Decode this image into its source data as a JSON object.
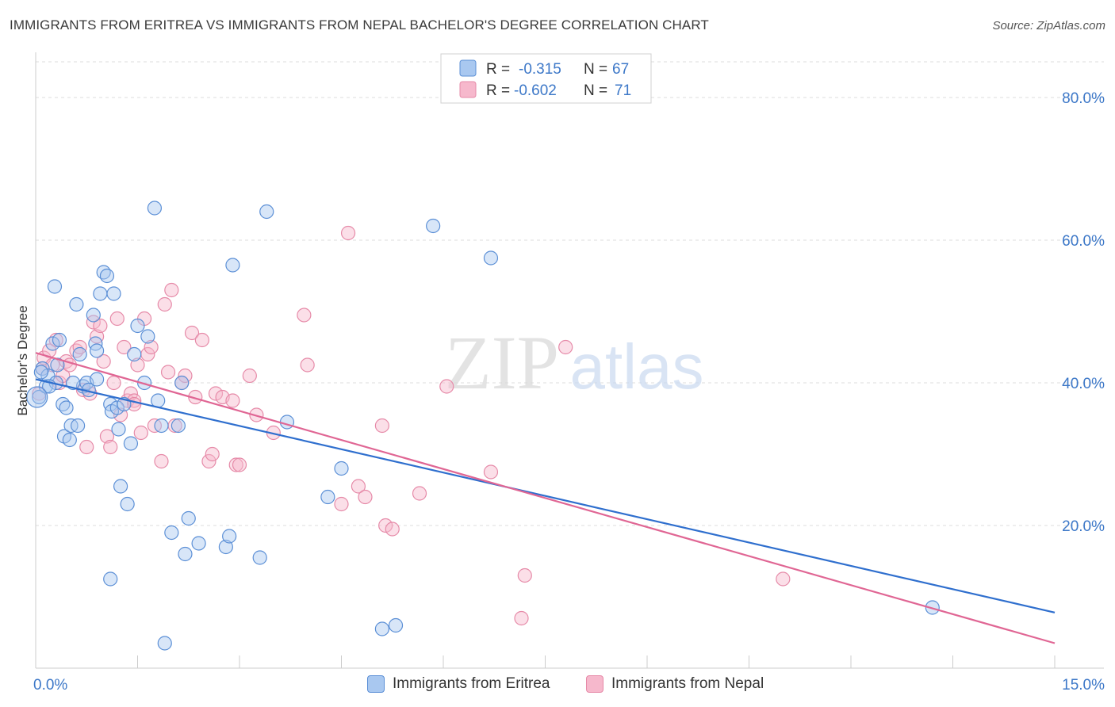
{
  "header": {
    "title": "IMMIGRANTS FROM ERITREA VS IMMIGRANTS FROM NEPAL BACHELOR'S DEGREE CORRELATION CHART",
    "source": "Source: ZipAtlas.com"
  },
  "watermark": {
    "zip": "ZIP",
    "atlas": "atlas"
  },
  "colors": {
    "eritrea_fill": "#a9c8f0",
    "eritrea_stroke": "#5b8fd6",
    "eritrea_line": "#2f6fce",
    "nepal_fill": "#f6b8cc",
    "nepal_stroke": "#e68aa8",
    "nepal_line": "#e06694",
    "axis_label": "#3d78c8",
    "grid": "#dddddd"
  },
  "legend": {
    "rows": [
      {
        "r_label": "R =",
        "r_value": "-0.315",
        "n_label": "N =",
        "n_value": "67"
      },
      {
        "r_label": "R =",
        "r_value": "-0.602",
        "n_label": "N =",
        "n_value": "71"
      }
    ]
  },
  "chart_data": {
    "type": "scatter",
    "title": "IMMIGRANTS FROM ERITREA VS IMMIGRANTS FROM NEPAL BACHELOR'S DEGREE CORRELATION CHART",
    "xlabel": "",
    "ylabel": "Bachelor's Degree",
    "xlim": [
      0,
      15
    ],
    "ylim": [
      0,
      85
    ],
    "x_tick_labels": [
      "0.0%",
      "15.0%"
    ],
    "y_ticks": [
      20,
      40,
      60,
      80
    ],
    "y_tick_labels": [
      "20.0%",
      "40.0%",
      "60.0%",
      "80.0%"
    ],
    "grid": true,
    "legend_position": "top-center",
    "series": [
      {
        "name": "Immigrants from Eritrea",
        "trend": {
          "x": [
            0,
            15
          ],
          "y": [
            40.5,
            7.8
          ]
        },
        "points": [
          [
            0.05,
            38.0
          ],
          [
            0.1,
            42.0
          ],
          [
            0.15,
            39.5
          ],
          [
            0.18,
            41.0
          ],
          [
            0.25,
            45.5
          ],
          [
            0.28,
            53.5
          ],
          [
            0.3,
            40.0
          ],
          [
            0.32,
            42.5
          ],
          [
            0.35,
            46.0
          ],
          [
            0.4,
            37.0
          ],
          [
            0.42,
            32.5
          ],
          [
            0.5,
            32.0
          ],
          [
            0.52,
            34.0
          ],
          [
            0.6,
            51.0
          ],
          [
            0.62,
            34.0
          ],
          [
            0.7,
            39.5
          ],
          [
            0.75,
            40.0
          ],
          [
            0.78,
            39.0
          ],
          [
            0.85,
            49.5
          ],
          [
            0.88,
            45.5
          ],
          [
            0.9,
            44.5
          ],
          [
            0.95,
            52.5
          ],
          [
            1.0,
            55.5
          ],
          [
            1.05,
            55.0
          ],
          [
            1.1,
            37.0
          ],
          [
            1.12,
            36.0
          ],
          [
            1.15,
            52.5
          ],
          [
            1.2,
            36.5
          ],
          [
            1.22,
            33.5
          ],
          [
            1.25,
            25.5
          ],
          [
            1.3,
            37.0
          ],
          [
            1.35,
            23.0
          ],
          [
            1.4,
            31.5
          ],
          [
            1.45,
            44.0
          ],
          [
            1.5,
            48.0
          ],
          [
            1.65,
            46.5
          ],
          [
            1.75,
            64.5
          ],
          [
            1.8,
            37.5
          ],
          [
            1.85,
            34.0
          ],
          [
            1.9,
            3.5
          ],
          [
            2.0,
            19.0
          ],
          [
            2.1,
            34.0
          ],
          [
            2.15,
            40.0
          ],
          [
            2.2,
            16.0
          ],
          [
            2.25,
            21.0
          ],
          [
            2.4,
            17.5
          ],
          [
            2.8,
            17.0
          ],
          [
            2.85,
            18.5
          ],
          [
            2.9,
            56.5
          ],
          [
            3.3,
            15.5
          ],
          [
            3.4,
            64.0
          ],
          [
            3.7,
            34.5
          ],
          [
            4.3,
            24.0
          ],
          [
            4.5,
            28.0
          ],
          [
            5.1,
            5.5
          ],
          [
            5.3,
            6.0
          ],
          [
            5.85,
            62.0
          ],
          [
            6.7,
            57.5
          ],
          [
            13.2,
            8.5
          ],
          [
            1.1,
            12.5
          ],
          [
            0.9,
            40.5
          ],
          [
            0.55,
            40.0
          ],
          [
            0.65,
            44.0
          ],
          [
            0.2,
            39.5
          ],
          [
            0.08,
            41.5
          ],
          [
            1.6,
            40.0
          ],
          [
            0.45,
            36.5
          ]
        ]
      },
      {
        "name": "Immigrants from Nepal",
        "trend": {
          "x": [
            0,
            15
          ],
          "y": [
            44.2,
            3.5
          ]
        },
        "points": [
          [
            0.05,
            38.5
          ],
          [
            0.1,
            42.0
          ],
          [
            0.12,
            43.5
          ],
          [
            0.2,
            44.5
          ],
          [
            0.25,
            42.5
          ],
          [
            0.3,
            46.0
          ],
          [
            0.35,
            40.0
          ],
          [
            0.4,
            41.0
          ],
          [
            0.45,
            43.0
          ],
          [
            0.5,
            42.5
          ],
          [
            0.6,
            44.5
          ],
          [
            0.65,
            45.0
          ],
          [
            0.7,
            39.0
          ],
          [
            0.8,
            38.5
          ],
          [
            0.85,
            48.5
          ],
          [
            0.9,
            46.5
          ],
          [
            0.95,
            48.0
          ],
          [
            1.0,
            43.0
          ],
          [
            1.05,
            32.5
          ],
          [
            1.1,
            31.0
          ],
          [
            1.15,
            40.0
          ],
          [
            1.2,
            49.0
          ],
          [
            1.25,
            35.5
          ],
          [
            1.3,
            45.0
          ],
          [
            1.35,
            37.5
          ],
          [
            1.4,
            38.5
          ],
          [
            1.45,
            37.5
          ],
          [
            1.5,
            42.5
          ],
          [
            1.55,
            33.0
          ],
          [
            1.6,
            49.0
          ],
          [
            1.65,
            44.0
          ],
          [
            1.7,
            45.0
          ],
          [
            1.75,
            34.0
          ],
          [
            1.85,
            29.0
          ],
          [
            1.9,
            51.0
          ],
          [
            1.95,
            41.5
          ],
          [
            2.0,
            53.0
          ],
          [
            2.05,
            34.0
          ],
          [
            2.15,
            40.0
          ],
          [
            2.2,
            41.0
          ],
          [
            2.3,
            47.0
          ],
          [
            2.35,
            38.0
          ],
          [
            2.45,
            46.0
          ],
          [
            2.55,
            29.0
          ],
          [
            2.6,
            30.0
          ],
          [
            2.65,
            38.5
          ],
          [
            2.75,
            38.0
          ],
          [
            2.9,
            37.5
          ],
          [
            2.95,
            28.5
          ],
          [
            3.0,
            28.5
          ],
          [
            3.15,
            41.0
          ],
          [
            3.25,
            35.5
          ],
          [
            3.5,
            33.0
          ],
          [
            3.95,
            49.5
          ],
          [
            4.0,
            42.5
          ],
          [
            4.5,
            23.0
          ],
          [
            4.6,
            61.0
          ],
          [
            4.75,
            25.5
          ],
          [
            4.85,
            24.0
          ],
          [
            5.1,
            34.0
          ],
          [
            5.15,
            20.0
          ],
          [
            5.25,
            19.5
          ],
          [
            5.65,
            24.5
          ],
          [
            6.05,
            39.5
          ],
          [
            6.7,
            27.5
          ],
          [
            7.2,
            13.0
          ],
          [
            7.15,
            7.0
          ],
          [
            7.8,
            45.0
          ],
          [
            11.0,
            12.5
          ],
          [
            1.45,
            37.0
          ],
          [
            0.75,
            31.0
          ]
        ]
      }
    ]
  }
}
